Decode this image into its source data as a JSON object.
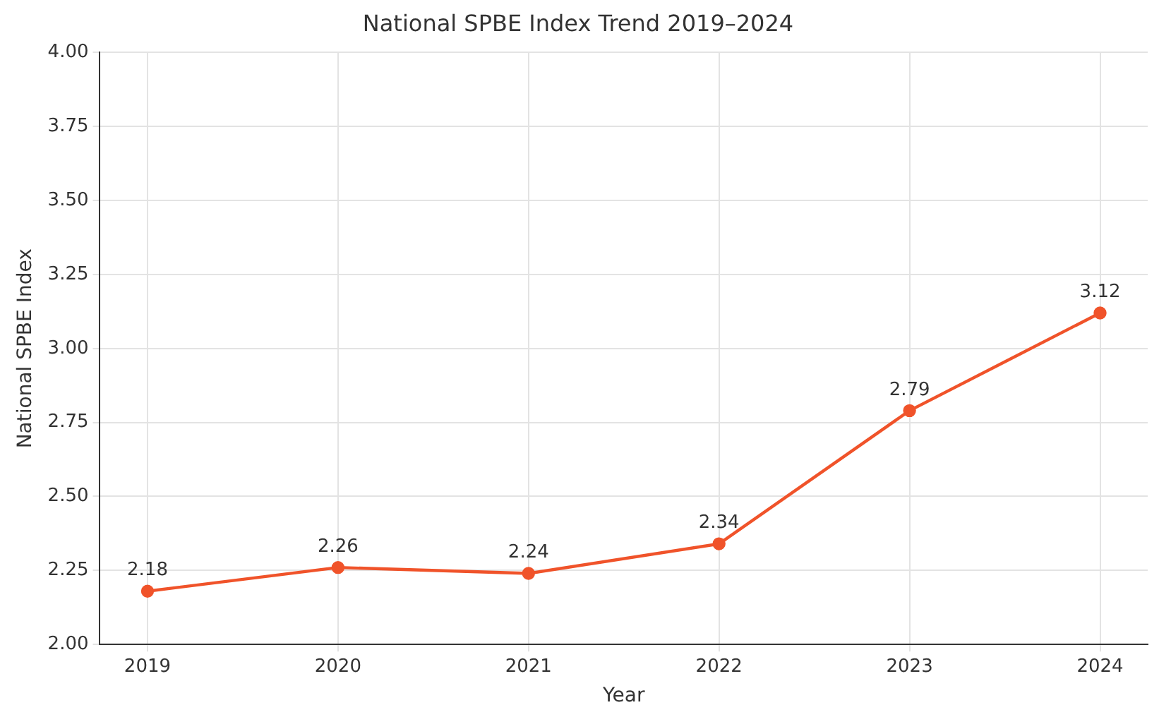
{
  "chart_data": {
    "type": "line",
    "title": "National SPBE Index Trend 2019–2024",
    "xlabel": "Year",
    "ylabel": "National SPBE Index",
    "x": [
      2019,
      2020,
      2021,
      2022,
      2023,
      2024
    ],
    "series": [
      {
        "color": "#f0532a",
        "values": [
          2.18,
          2.26,
          2.24,
          2.34,
          2.79,
          3.12
        ]
      }
    ],
    "xlim": [
      2018.75,
      2024.25
    ],
    "xticks": [
      2019,
      2020,
      2021,
      2022,
      2023,
      2024
    ],
    "ylim": [
      2,
      4
    ],
    "yticks": [
      {
        "value": 2,
        "label": "2.00"
      },
      {
        "value": 2.25,
        "label": "2.25"
      },
      {
        "value": 2.5,
        "label": "2.50"
      },
      {
        "value": 2.75,
        "label": "2.75"
      },
      {
        "value": 3,
        "label": "3.00"
      },
      {
        "value": 3.25,
        "label": "3.25"
      },
      {
        "value": 3.5,
        "label": "3.50"
      },
      {
        "value": 3.75,
        "label": "3.75"
      },
      {
        "value": 4,
        "label": "4.00"
      }
    ],
    "grid": true,
    "marker": "circle",
    "line_style": "solid",
    "data_labels": true,
    "legend": false
  }
}
